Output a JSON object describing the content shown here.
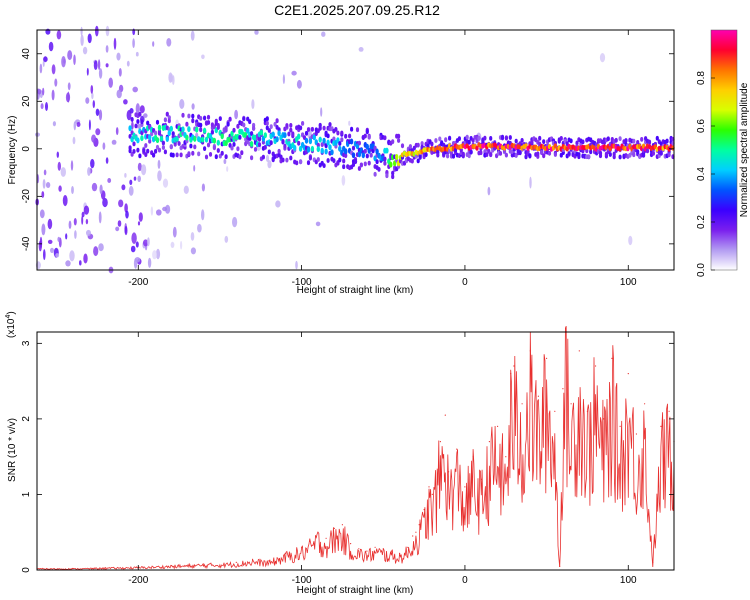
{
  "title": "C2E1.2025.207.09.25.R12",
  "chart_data": [
    {
      "type": "heatmap",
      "xlabel": "Height of straight line (km)",
      "ylabel": "Frequency (Hz)",
      "xlim": [
        -262,
        128
      ],
      "ylim": [
        -51,
        50
      ],
      "xticks": [
        -200,
        -100,
        0,
        100
      ],
      "yticks": [
        -40,
        -20,
        0,
        20,
        40
      ],
      "colorbar": {
        "label": "Normalized spectral amplitude",
        "range": [
          0,
          1
        ],
        "ticks": [
          "0.0",
          "0.2",
          "0.4",
          "0.6",
          "0.8"
        ],
        "colormap": [
          "#ffffff",
          "#b39cf2",
          "#7a1fee",
          "#3a00ff",
          "#0055ff",
          "#00cfff",
          "#00ffa0",
          "#2cff00",
          "#d8ff00",
          "#ffcf00",
          "#ff7400",
          "#ff0030",
          "#ff00b0"
        ]
      },
      "ridge": {
        "x": [
          -205,
          -190,
          -175,
          -160,
          -145,
          -130,
          -115,
          -100,
          -85,
          -70,
          -60,
          -50,
          -45,
          -40,
          -30,
          -20,
          -10,
          0,
          20,
          40,
          60,
          80,
          100,
          128
        ],
        "frequency": [
          6,
          6,
          6,
          5.5,
          5,
          4.5,
          4,
          2.5,
          1.5,
          0.5,
          -1,
          -3,
          -4,
          -3,
          -1.5,
          0,
          0.5,
          1,
          1,
          0.5,
          0.5,
          0.5,
          0.5,
          0.5
        ],
        "amplitude": [
          0.45,
          0.5,
          0.5,
          0.5,
          0.55,
          0.5,
          0.45,
          0.45,
          0.45,
          0.4,
          0.35,
          0.4,
          0.6,
          0.75,
          0.8,
          0.85,
          0.9,
          0.95,
          0.95,
          0.95,
          0.95,
          0.95,
          0.95,
          0.9
        ]
      }
    },
    {
      "type": "line",
      "xlabel": "Height of straight line (km)",
      "ylabel": "SNR (10 * v/v)",
      "y_multiplier": "(x10",
      "y_multiplier_exp": "4",
      "y_multiplier_close": ")",
      "xlim": [
        -262,
        128
      ],
      "ylim": [
        0,
        3.15
      ],
      "xticks": [
        -200,
        -100,
        0,
        100
      ],
      "yticks": [
        0,
        1,
        2,
        3
      ],
      "color": "#e8302f",
      "series": [
        {
          "x": [
            -262,
            -240,
            -220,
            -200,
            -180,
            -160,
            -140,
            -130,
            -120,
            -110,
            -100,
            -95,
            -90,
            -85,
            -80,
            -75,
            -70,
            -65,
            -60,
            -55,
            -50,
            -45,
            -40,
            -35,
            -32,
            -30,
            -28,
            -25,
            -22,
            -20,
            -15,
            -12,
            -10,
            -5,
            0,
            5,
            10,
            15,
            20,
            25,
            28,
            30,
            35,
            40,
            45,
            50,
            55,
            58,
            60,
            62,
            65,
            70,
            75,
            80,
            85,
            90,
            95,
            100,
            105,
            110,
            115,
            120,
            125,
            128
          ],
          "y": [
            0.02,
            0.02,
            0.03,
            0.04,
            0.06,
            0.08,
            0.1,
            0.14,
            0.12,
            0.22,
            0.3,
            0.38,
            0.5,
            0.42,
            0.55,
            0.6,
            0.35,
            0.28,
            0.25,
            0.3,
            0.28,
            0.25,
            0.22,
            0.3,
            0.45,
            0.5,
            0.6,
            0.8,
            1.1,
            1.0,
            1.7,
            2.05,
            1.3,
            1.6,
            1.1,
            1.5,
            1.2,
            1.7,
            1.9,
            1.5,
            2.6,
            2.7,
            2.2,
            2.9,
            2.3,
            2.8,
            2.1,
            0.05,
            2.4,
            3.15,
            2.2,
            2.9,
            2.1,
            2.7,
            2.0,
            2.8,
            1.9,
            2.6,
            1.8,
            2.2,
            0.1,
            1.9,
            2.1,
            1.7
          ]
        }
      ]
    }
  ]
}
